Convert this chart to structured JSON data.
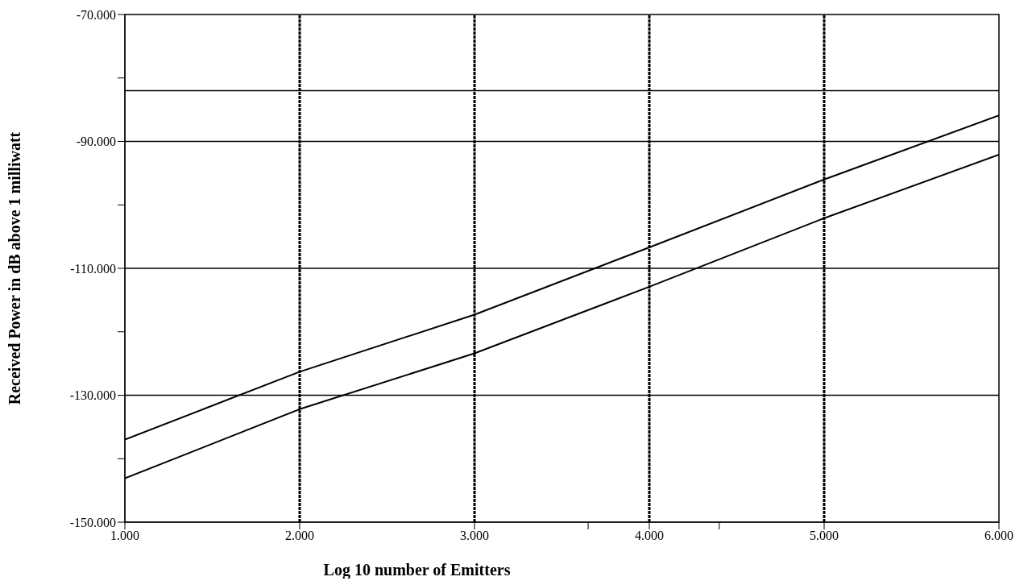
{
  "chart_data": {
    "type": "line",
    "xlabel": "Log 10 number of Emitters",
    "ylabel": "Received Power in dB  above  1 milliwatt",
    "x": [
      1,
      2,
      3,
      4,
      5,
      6
    ],
    "series": [
      {
        "color": "#000000",
        "values": [
          -137,
          -126.3,
          -117.3,
          -106.7,
          -96,
          -85.9
        ]
      },
      {
        "color": "#000000",
        "values": [
          -143.1,
          -132.2,
          -123.4,
          -112.9,
          -102.1,
          -92.1
        ]
      }
    ],
    "xlim": [
      1,
      6
    ],
    "xticks": [
      {
        "value": 1,
        "label": "1.000"
      },
      {
        "value": 2,
        "label": "2.000"
      },
      {
        "value": 3,
        "label": "3.000"
      },
      {
        "value": 3.65,
        "label": null
      },
      {
        "value": 4,
        "label": "4.000"
      },
      {
        "value": 4.4,
        "label": null
      },
      {
        "value": 5,
        "label": "5.000"
      },
      {
        "value": 6,
        "label": "6.000"
      }
    ],
    "ylim": [
      -150,
      -70
    ],
    "yticks": [
      {
        "value": -150,
        "label": "-150.000"
      },
      {
        "value": -140,
        "label": null
      },
      {
        "value": -130,
        "label": "-130.000"
      },
      {
        "value": -120,
        "label": null
      },
      {
        "value": -110,
        "label": "-110.000"
      },
      {
        "value": -100,
        "label": null
      },
      {
        "value": -90,
        "label": "-90.000"
      },
      {
        "value": -80,
        "label": null
      },
      {
        "value": -70,
        "label": "-70.000"
      }
    ],
    "grid": true,
    "ref_lines": [
      {
        "axis": "y",
        "value": -82
      }
    ]
  }
}
